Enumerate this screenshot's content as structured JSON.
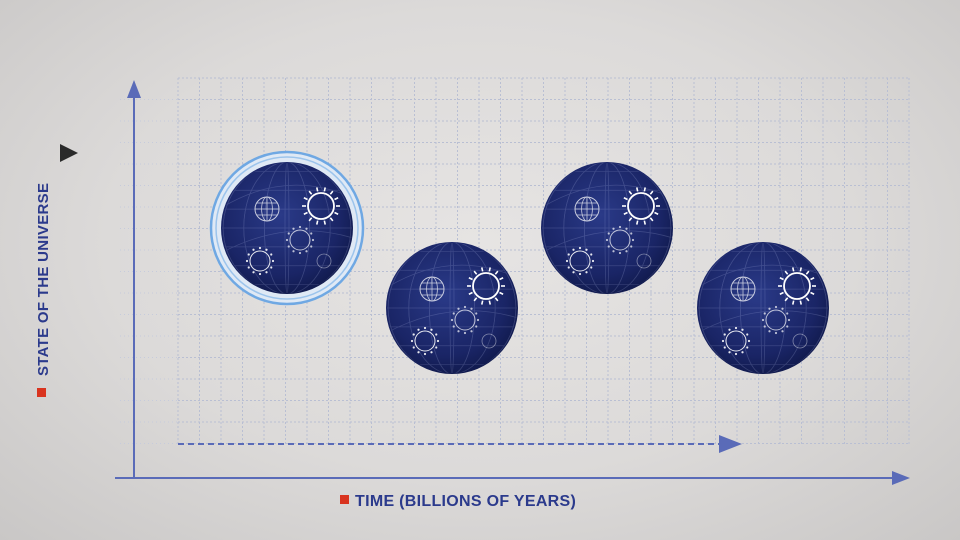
{
  "axes": {
    "x_label": "TIME (BILLIONS OF YEARS)",
    "y_label": "STATE OF THE UNIVERSE"
  },
  "colors": {
    "axis": "#5a6bb8",
    "grid": "#b9bfd3",
    "label": "#2b3a8c",
    "marker": "#d9341f",
    "sphere": "#17235e",
    "sphere_line": "#ffffff",
    "highlight_ring": "#6fa8e3",
    "dashed_arrow": "#5a6bb8"
  },
  "icons": {
    "y_pointer": "play-triangle-icon",
    "legend_marker": "red-square-icon",
    "sphere_contents": [
      "globe-icon",
      "sun-icon",
      "virus-icon",
      "galaxy-icon",
      "circle-icon"
    ]
  },
  "universes": [
    {
      "name": "universe-1",
      "state": "high",
      "highlighted": true
    },
    {
      "name": "universe-2",
      "state": "low",
      "highlighted": false
    },
    {
      "name": "universe-3",
      "state": "high",
      "highlighted": false
    },
    {
      "name": "universe-4",
      "state": "low",
      "highlighted": false
    }
  ]
}
